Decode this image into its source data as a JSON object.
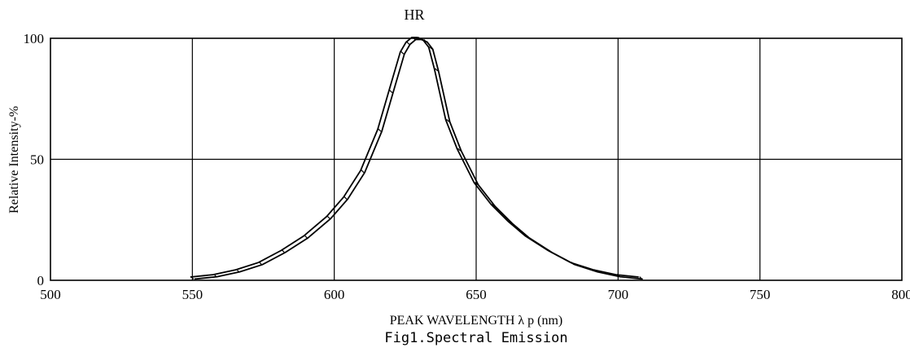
{
  "chart_data": {
    "type": "line",
    "title": "HR",
    "xlabel": "PEAK WAVELENGTH λ p (nm)",
    "ylabel": "Relative Intensity-%",
    "caption": "Fig1.Spectral Emission",
    "xlim": [
      500,
      800
    ],
    "ylim": [
      0,
      100
    ],
    "x_ticks": [
      500,
      550,
      600,
      650,
      700,
      750,
      800
    ],
    "y_ticks": [
      0,
      50,
      100
    ],
    "grid": true,
    "series": [
      {
        "x": [
          550,
          558,
          566,
          574,
          582,
          590,
          598,
          604,
          610,
          616,
          620,
          624,
          626,
          628,
          630,
          632,
          634,
          636,
          640,
          644,
          650,
          656,
          662,
          668,
          676,
          684,
          692,
          700,
          708
        ],
        "y": [
          1,
          2,
          4,
          7,
          12,
          18,
          26,
          34,
          45,
          62,
          78,
          94,
          98,
          100,
          100,
          99,
          96,
          87,
          66,
          54,
          40,
          31,
          24,
          18,
          12,
          7,
          4,
          2,
          1
        ]
      }
    ],
    "line_color": "#000000"
  }
}
